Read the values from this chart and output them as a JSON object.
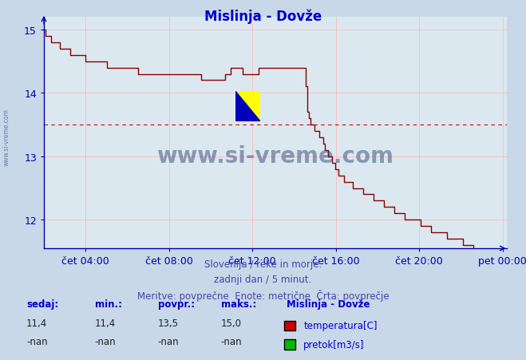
{
  "title": "Mislinja - Dovže",
  "title_color": "#0000cc",
  "bg_color": "#c8d8e8",
  "plot_bg_color": "#dce8f0",
  "grid_color": "#ffb0b0",
  "axis_color": "#0000aa",
  "line_color": "#880000",
  "avg_line_color": "#cc0000",
  "avg_value": 13.5,
  "ylim": [
    11.55,
    15.2
  ],
  "yticks": [
    12,
    13,
    14,
    15
  ],
  "xtick_labels": [
    "čet 04:00",
    "čet 08:00",
    "čet 12:00",
    "čet 16:00",
    "čet 20:00",
    "pet 00:00"
  ],
  "footer_lines": [
    "Slovenija / reke in morje.",
    "zadnji dan / 5 minut.",
    "Meritve: povprečne  Enote: metrične  Črta: povprečje"
  ],
  "footer_color": "#4444aa",
  "legend_title": "Mislinja - Dovže",
  "legend_items": [
    {
      "label": "temperatura[C]",
      "color": "#cc0000"
    },
    {
      "label": "pretok[m3/s]",
      "color": "#00bb00"
    }
  ],
  "stats_headers": [
    "sedaj:",
    "min.:",
    "povpr.:",
    "maks.:"
  ],
  "stats_temp": [
    "11,4",
    "11,4",
    "13,5",
    "15,0"
  ],
  "stats_flow": [
    "-nan",
    "-nan",
    "-nan",
    "-nan"
  ],
  "watermark": "www.si-vreme.com",
  "watermark_color": "#1a3a6a",
  "side_watermark_color": "#3a5a8a",
  "keypoints_h": [
    2.0,
    2.08,
    2.5,
    3.5,
    4.5,
    5.5,
    6.5,
    7.5,
    8.0,
    8.5,
    9.0,
    9.5,
    10.0,
    10.5,
    10.8,
    11.0,
    11.3,
    11.5,
    11.8,
    12.0,
    12.5,
    13.0,
    13.5,
    14.0,
    14.5,
    14.6,
    14.7,
    14.8,
    15.0,
    15.2,
    15.5,
    16.0,
    16.5,
    17.0,
    17.5,
    18.0,
    18.5,
    19.0,
    19.5,
    20.0,
    20.5,
    21.0,
    21.5,
    22.0,
    22.5,
    23.0,
    23.5,
    24.0
  ],
  "keypoints_v": [
    15.0,
    14.9,
    14.8,
    14.6,
    14.5,
    14.4,
    14.35,
    14.3,
    14.3,
    14.3,
    14.28,
    14.25,
    14.25,
    14.2,
    14.3,
    14.4,
    14.4,
    14.35,
    14.3,
    14.3,
    14.4,
    14.45,
    14.45,
    14.45,
    14.45,
    13.7,
    13.6,
    13.5,
    13.4,
    13.35,
    13.1,
    12.8,
    12.6,
    12.5,
    12.4,
    12.3,
    12.2,
    12.1,
    12.0,
    11.95,
    11.85,
    11.8,
    11.7,
    11.65,
    11.55,
    11.5,
    11.45,
    11.4
  ]
}
